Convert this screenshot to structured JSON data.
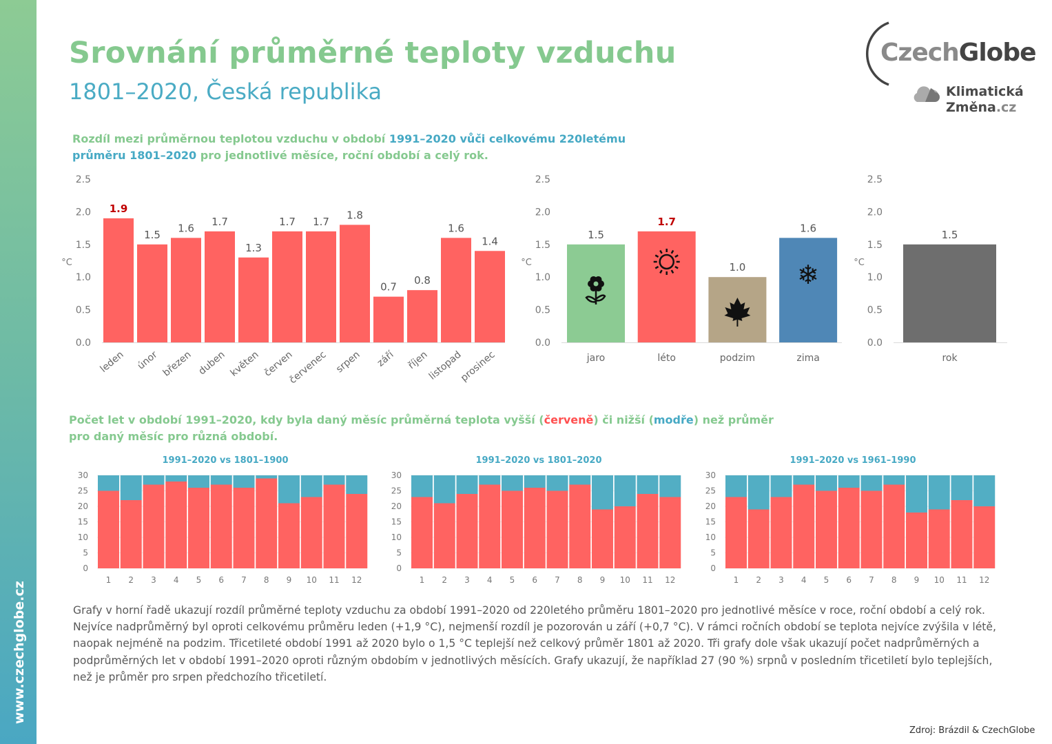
{
  "sidebar": {
    "site": "www.czechglobe.cz"
  },
  "header": {
    "title": "Srovnání průměrné teploty vzduchu",
    "subtitle": "1801–2020, Česká republika"
  },
  "logo": {
    "brand_light": "Czech",
    "brand_dark": "Globe",
    "sub_line1": "Klimatická",
    "sub_line2": "Změna",
    "sub_tld": ".cz"
  },
  "section1": {
    "part1": "Rozdíl mezi průměrnou teplotou vzduchu v období ",
    "part2": "1991–2020 vůči celkovému 220letému",
    "part3": "průměru 1801–2020",
    "part4": " pro jednotlivé měsíce, roční období a celý rok."
  },
  "section2": {
    "part1": "Počet let v období 1991–2020, kdy byla daný měsíc průměrná teplota vyšší (",
    "red_word": "červeně",
    "part2": ") či nižší (",
    "blue_word": "modře",
    "part3": ") než průměr",
    "line2": "pro daný měsíc pro různá období."
  },
  "paragraph": "Grafy v horní řadě ukazují rozdíl průměrné teploty vzduchu za období 1991–2020 od 220letého průměru 1801–2020 pro jednotlivé měsíce v roce, roční období a celý rok. Nejvíce nadprůměrný byl oproti celkovému průměru leden (+1,9 °C), nejmenší rozdíl je pozorován u září (+0,7 °C). V rámci ročních období se teplota nejvíce zvýšila v létě, naopak nejméně na podzim. Třicetileté období 1991 až 2020 bylo o 1,5 °C teplejší než celkový průměr 1801 až 2020. Tři grafy dole však ukazují počet nadprůměrných a podprůměrných let v období 1991–2020 oproti různým obdobím v jednotlivých měsících. Grafy ukazují, že například 27 (90 %) srpnů v posledním třicetiletí bylo teplejších, než je průměr pro srpen předchozího třicetiletí.",
  "source": "Zdroj: Brázdil & CzechGlobe",
  "colors": {
    "red": "#ff6361",
    "blue": "#52aec4",
    "highlight": "#c00000",
    "jaro": "#8ccb93",
    "leto": "#ff6361",
    "podzim": "#b5a587",
    "zima": "#4f87b6",
    "rok": "#6e6e6e"
  },
  "chart_data": [
    {
      "type": "bar",
      "title": "",
      "xlabel": "",
      "ylabel": "°C",
      "ylim": [
        0,
        2.5
      ],
      "yticks": [
        "0.0",
        "0.5",
        "1.0",
        "1.5",
        "2.0",
        "2.5"
      ],
      "categories": [
        "leden",
        "únor",
        "březen",
        "duben",
        "květen",
        "červen",
        "červenec",
        "srpen",
        "září",
        "říjen",
        "listopad",
        "prosinec"
      ],
      "values": [
        1.9,
        1.5,
        1.6,
        1.7,
        1.3,
        1.7,
        1.7,
        1.8,
        0.7,
        0.8,
        1.6,
        1.4
      ],
      "highlight_index": 0
    },
    {
      "type": "bar",
      "title": "",
      "xlabel": "",
      "ylabel": "°C",
      "ylim": [
        0,
        2.5
      ],
      "yticks": [
        "0.0",
        "0.5",
        "1.0",
        "1.5",
        "2.0",
        "2.5"
      ],
      "categories": [
        "jaro",
        "léto",
        "podzim",
        "zima"
      ],
      "values": [
        1.5,
        1.7,
        1.0,
        1.6
      ],
      "icons": [
        "flower-icon",
        "sun-icon",
        "maple-leaf-icon",
        "snowflake-icon"
      ],
      "highlight_index": 1
    },
    {
      "type": "bar",
      "title": "",
      "xlabel": "",
      "ylabel": "°C",
      "ylim": [
        0,
        2.5
      ],
      "yticks": [
        "0.0",
        "0.5",
        "1.0",
        "1.5",
        "2.0",
        "2.5"
      ],
      "categories": [
        "rok"
      ],
      "values": [
        1.5
      ]
    },
    {
      "type": "bar",
      "stacked": true,
      "title": "1991–2020 vs 1801–1900",
      "ylim": [
        0,
        30
      ],
      "yticks": [
        "0",
        "5",
        "10",
        "15",
        "20",
        "25",
        "30"
      ],
      "categories": [
        "1",
        "2",
        "3",
        "4",
        "5",
        "6",
        "7",
        "8",
        "9",
        "10",
        "11",
        "12"
      ],
      "series": [
        {
          "values": [
            25,
            22,
            27,
            28,
            26,
            27,
            26,
            29,
            21,
            23,
            27,
            24
          ]
        },
        {
          "values": [
            5,
            8,
            3,
            2,
            4,
            3,
            4,
            1,
            9,
            7,
            3,
            6
          ]
        }
      ]
    },
    {
      "type": "bar",
      "stacked": true,
      "title": "1991–2020 vs 1801–2020",
      "ylim": [
        0,
        30
      ],
      "yticks": [
        "0",
        "5",
        "10",
        "15",
        "20",
        "25",
        "30"
      ],
      "categories": [
        "1",
        "2",
        "3",
        "4",
        "5",
        "6",
        "7",
        "8",
        "9",
        "10",
        "11",
        "12"
      ],
      "series": [
        {
          "values": [
            23,
            21,
            24,
            27,
            25,
            26,
            25,
            27,
            19,
            20,
            24,
            23
          ]
        },
        {
          "values": [
            7,
            9,
            6,
            3,
            5,
            4,
            5,
            3,
            11,
            10,
            6,
            7
          ]
        }
      ]
    },
    {
      "type": "bar",
      "stacked": true,
      "title": "1991–2020 vs 1961–1990",
      "ylim": [
        0,
        30
      ],
      "yticks": [
        "0",
        "5",
        "10",
        "15",
        "20",
        "25",
        "30"
      ],
      "categories": [
        "1",
        "2",
        "3",
        "4",
        "5",
        "6",
        "7",
        "8",
        "9",
        "10",
        "11",
        "12"
      ],
      "series": [
        {
          "values": [
            23,
            19,
            23,
            27,
            25,
            26,
            25,
            27,
            18,
            19,
            22,
            20
          ]
        },
        {
          "values": [
            7,
            11,
            7,
            3,
            5,
            4,
            5,
            3,
            12,
            11,
            8,
            10
          ]
        }
      ]
    }
  ]
}
